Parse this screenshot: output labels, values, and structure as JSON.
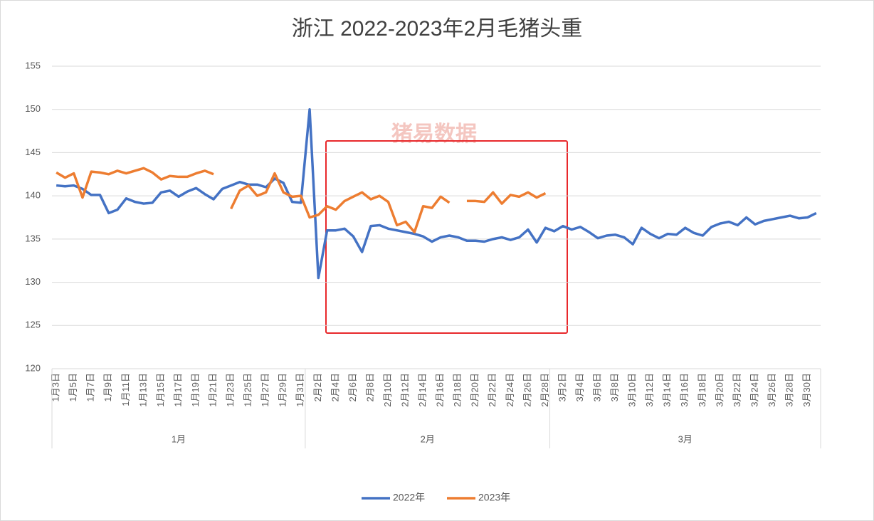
{
  "chart_data": {
    "type": "line",
    "title": "浙江 2022-2023年2月毛猪头重",
    "watermark": "猪易数据",
    "categories": [
      "1月3日",
      null,
      "1月5日",
      null,
      "1月7日",
      null,
      "1月9日",
      null,
      "1月11日",
      null,
      "1月13日",
      null,
      "1月15日",
      null,
      "1月17日",
      null,
      "1月19日",
      null,
      "1月21日",
      null,
      "1月23日",
      null,
      "1月25日",
      null,
      "1月27日",
      null,
      "1月29日",
      null,
      "1月31日",
      null,
      "2月2日",
      null,
      "2月4日",
      null,
      "2月6日",
      null,
      "2月8日",
      null,
      "2月10日",
      null,
      "2月12日",
      null,
      "2月14日",
      null,
      "2月16日",
      null,
      "2月18日",
      null,
      "2月20日",
      null,
      "2月22日",
      null,
      "2月24日",
      null,
      "2月26日",
      null,
      "2月28日",
      null,
      "3月2日",
      null,
      "3月4日",
      null,
      "3月6日",
      null,
      "3月8日",
      null,
      "3月10日",
      null,
      "3月12日",
      null,
      "3月14日",
      null,
      "3月16日",
      null,
      "3月18日",
      null,
      "3月20日",
      null,
      "3月22日",
      null,
      "3月24日",
      null,
      "3月26日",
      null,
      "3月28日",
      null,
      "3月30日",
      null
    ],
    "groups": [
      "1月",
      "2月",
      "3月"
    ],
    "series": [
      {
        "name": "2022年",
        "color": "#4472c4",
        "values": [
          141.2,
          141.1,
          141.2,
          140.8,
          140.1,
          140.1,
          138.0,
          138.4,
          139.7,
          139.3,
          139.1,
          139.2,
          140.4,
          140.6,
          139.9,
          140.5,
          140.9,
          140.2,
          139.6,
          140.8,
          141.2,
          141.6,
          141.3,
          141.3,
          141.0,
          142.0,
          141.5,
          139.3,
          139.2,
          150.0,
          130.5,
          136.0,
          136.0,
          136.2,
          135.3,
          133.5,
          136.5,
          136.6,
          136.2,
          136.0,
          135.8,
          135.6,
          135.3,
          134.7,
          135.2,
          135.4,
          135.2,
          134.8,
          134.8,
          134.7,
          135.0,
          135.2,
          134.9,
          135.2,
          136.1,
          134.6,
          136.3,
          135.9,
          136.5,
          136.1,
          136.4,
          135.8,
          135.1,
          135.4,
          135.5,
          135.2,
          134.4,
          136.3,
          135.6,
          135.1,
          135.6,
          135.5,
          136.3,
          135.7,
          135.4,
          136.4,
          136.8,
          137.0,
          136.6,
          137.5,
          136.7,
          137.1,
          137.3,
          137.5,
          137.7,
          137.4,
          137.5,
          138.0
        ]
      },
      {
        "name": "2023年",
        "color": "#ed7d31",
        "values": [
          142.7,
          142.1,
          142.6,
          139.8,
          142.8,
          142.7,
          142.5,
          142.9,
          142.6,
          142.9,
          143.2,
          142.7,
          141.9,
          142.3,
          142.2,
          142.2,
          142.6,
          142.9,
          142.5,
          null,
          138.5,
          140.6,
          141.2,
          140.0,
          140.4,
          142.6,
          140.4,
          139.9,
          140.0,
          137.5,
          137.8,
          138.8,
          138.4,
          139.4,
          139.9,
          140.4,
          139.6,
          140.0,
          139.3,
          136.6,
          137.0,
          135.8,
          138.8,
          138.6,
          139.9,
          139.2,
          null,
          139.4,
          139.4,
          139.3,
          140.4,
          139.1,
          140.1,
          139.9,
          140.4,
          139.8,
          140.3,
          null,
          null,
          null,
          null,
          null,
          null,
          null,
          null,
          null,
          null,
          null,
          null,
          null,
          null,
          null,
          null,
          null,
          null,
          null,
          null,
          null,
          null,
          null,
          null,
          null,
          null,
          null,
          null,
          null,
          null,
          null
        ]
      }
    ],
    "ylim": [
      120,
      155
    ],
    "yticks": [
      120,
      125,
      130,
      135,
      140,
      145,
      150,
      155
    ],
    "grid": true,
    "legend": "bottom"
  }
}
